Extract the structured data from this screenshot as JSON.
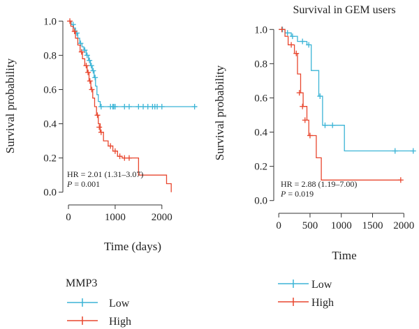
{
  "colors": {
    "low": "#3bb4d6",
    "high": "#e8462e",
    "axis": "#333333"
  },
  "chart_data": [
    {
      "type": "line",
      "title": "",
      "xlabel": "Time (days)",
      "ylabel": "Survival probability",
      "xlim": [
        -120,
        2900
      ],
      "ylim": [
        -0.05,
        1.05
      ],
      "xticks": [
        0,
        1000,
        2000
      ],
      "yticks": [
        0.0,
        0.2,
        0.4,
        0.6,
        0.8,
        1.0
      ],
      "xtick_labels": [
        "0",
        "1000",
        "2000"
      ],
      "ytick_labels": [
        "0.0",
        "0.2",
        "0.4",
        "0.6",
        "0.8",
        "1.0"
      ],
      "annotations": [
        "HR = 2.01 (1.31–3.07)",
        "P = 0.001"
      ],
      "series": [
        {
          "name": "Low",
          "steps": [
            [
              0,
              1.0
            ],
            [
              60,
              0.98
            ],
            [
              110,
              0.96
            ],
            [
              150,
              0.93
            ],
            [
              200,
              0.9
            ],
            [
              240,
              0.87
            ],
            [
              290,
              0.85
            ],
            [
              330,
              0.83
            ],
            [
              380,
              0.8
            ],
            [
              430,
              0.77
            ],
            [
              470,
              0.74
            ],
            [
              510,
              0.71
            ],
            [
              550,
              0.67
            ],
            [
              580,
              0.62
            ],
            [
              610,
              0.57
            ],
            [
              640,
              0.53
            ],
            [
              680,
              0.5
            ],
            [
              2750,
              0.5
            ]
          ],
          "censors": [
            [
              100,
              0.98
            ],
            [
              180,
              0.93
            ],
            [
              260,
              0.87
            ],
            [
              350,
              0.83
            ],
            [
              400,
              0.8
            ],
            [
              450,
              0.77
            ],
            [
              490,
              0.74
            ],
            [
              530,
              0.71
            ],
            [
              570,
              0.67
            ],
            [
              700,
              0.5
            ],
            [
              900,
              0.5
            ],
            [
              950,
              0.5
            ],
            [
              970,
              0.5
            ],
            [
              1000,
              0.5
            ],
            [
              1200,
              0.5
            ],
            [
              1300,
              0.5
            ],
            [
              1500,
              0.5
            ],
            [
              1600,
              0.5
            ],
            [
              1700,
              0.5
            ],
            [
              1800,
              0.5
            ],
            [
              1850,
              0.5
            ],
            [
              1900,
              0.5
            ],
            [
              2000,
              0.5
            ],
            [
              2700,
              0.5
            ]
          ]
        },
        {
          "name": "High",
          "steps": [
            [
              0,
              1.0
            ],
            [
              50,
              0.97
            ],
            [
              100,
              0.94
            ],
            [
              150,
              0.9
            ],
            [
              200,
              0.86
            ],
            [
              250,
              0.82
            ],
            [
              300,
              0.78
            ],
            [
              350,
              0.74
            ],
            [
              400,
              0.7
            ],
            [
              440,
              0.65
            ],
            [
              480,
              0.6
            ],
            [
              520,
              0.55
            ],
            [
              560,
              0.5
            ],
            [
              600,
              0.45
            ],
            [
              640,
              0.4
            ],
            [
              680,
              0.35
            ],
            [
              750,
              0.3
            ],
            [
              850,
              0.27
            ],
            [
              950,
              0.24
            ],
            [
              1050,
              0.21
            ],
            [
              1150,
              0.2
            ],
            [
              1500,
              0.1
            ],
            [
              2100,
              0.05
            ],
            [
              2200,
              0.0
            ]
          ],
          "censors": [
            [
              30,
              1.0
            ],
            [
              130,
              0.94
            ],
            [
              280,
              0.82
            ],
            [
              380,
              0.74
            ],
            [
              420,
              0.7
            ],
            [
              460,
              0.65
            ],
            [
              500,
              0.6
            ],
            [
              620,
              0.45
            ],
            [
              660,
              0.38
            ],
            [
              700,
              0.35
            ],
            [
              900,
              0.27
            ],
            [
              1000,
              0.24
            ],
            [
              1100,
              0.21
            ],
            [
              1200,
              0.2
            ],
            [
              1300,
              0.2
            ]
          ]
        }
      ]
    },
    {
      "type": "line",
      "title": "Survival in GEM users",
      "xlabel": "Time",
      "ylabel": "Survival probability",
      "xlim": [
        -80,
        2220
      ],
      "ylim": [
        -0.05,
        1.05
      ],
      "xticks": [
        0,
        500,
        1000,
        1500,
        2000
      ],
      "yticks": [
        0.0,
        0.2,
        0.4,
        0.6,
        0.8,
        1.0
      ],
      "xtick_labels": [
        "0",
        "500",
        "1000",
        "1500",
        "2000"
      ],
      "ytick_labels": [
        "0.0",
        "0.2",
        "0.4",
        "0.6",
        "0.8",
        "1.0"
      ],
      "annotations": [
        "HR = 2.88 (1.19–7.00)",
        "P = 0.019"
      ],
      "series": [
        {
          "name": "Low",
          "steps": [
            [
              0,
              1.0
            ],
            [
              100,
              0.98
            ],
            [
              200,
              0.96
            ],
            [
              300,
              0.93
            ],
            [
              450,
              0.91
            ],
            [
              520,
              0.76
            ],
            [
              640,
              0.61
            ],
            [
              700,
              0.44
            ],
            [
              1050,
              0.29
            ],
            [
              2150,
              0.29
            ]
          ],
          "censors": [
            [
              60,
              1.0
            ],
            [
              140,
              0.98
            ],
            [
              220,
              0.96
            ],
            [
              380,
              0.93
            ],
            [
              480,
              0.91
            ],
            [
              660,
              0.61
            ],
            [
              740,
              0.44
            ],
            [
              860,
              0.44
            ],
            [
              1860,
              0.29
            ],
            [
              2150,
              0.29
            ]
          ]
        },
        {
          "name": "High",
          "steps": [
            [
              0,
              1.0
            ],
            [
              100,
              0.96
            ],
            [
              150,
              0.91
            ],
            [
              250,
              0.86
            ],
            [
              300,
              0.74
            ],
            [
              350,
              0.63
            ],
            [
              390,
              0.55
            ],
            [
              450,
              0.47
            ],
            [
              480,
              0.38
            ],
            [
              600,
              0.25
            ],
            [
              680,
              0.12
            ],
            [
              1950,
              0.12
            ]
          ],
          "censors": [
            [
              50,
              1.0
            ],
            [
              200,
              0.91
            ],
            [
              280,
              0.86
            ],
            [
              330,
              0.63
            ],
            [
              380,
              0.55
            ],
            [
              420,
              0.47
            ],
            [
              500,
              0.38
            ],
            [
              1950,
              0.12
            ]
          ]
        }
      ]
    }
  ],
  "legends": [
    {
      "title": "MMP3",
      "items": [
        {
          "label": "Low"
        },
        {
          "label": "High"
        }
      ]
    },
    {
      "title": "",
      "items": [
        {
          "label": "Low"
        },
        {
          "label": "High"
        }
      ]
    }
  ]
}
